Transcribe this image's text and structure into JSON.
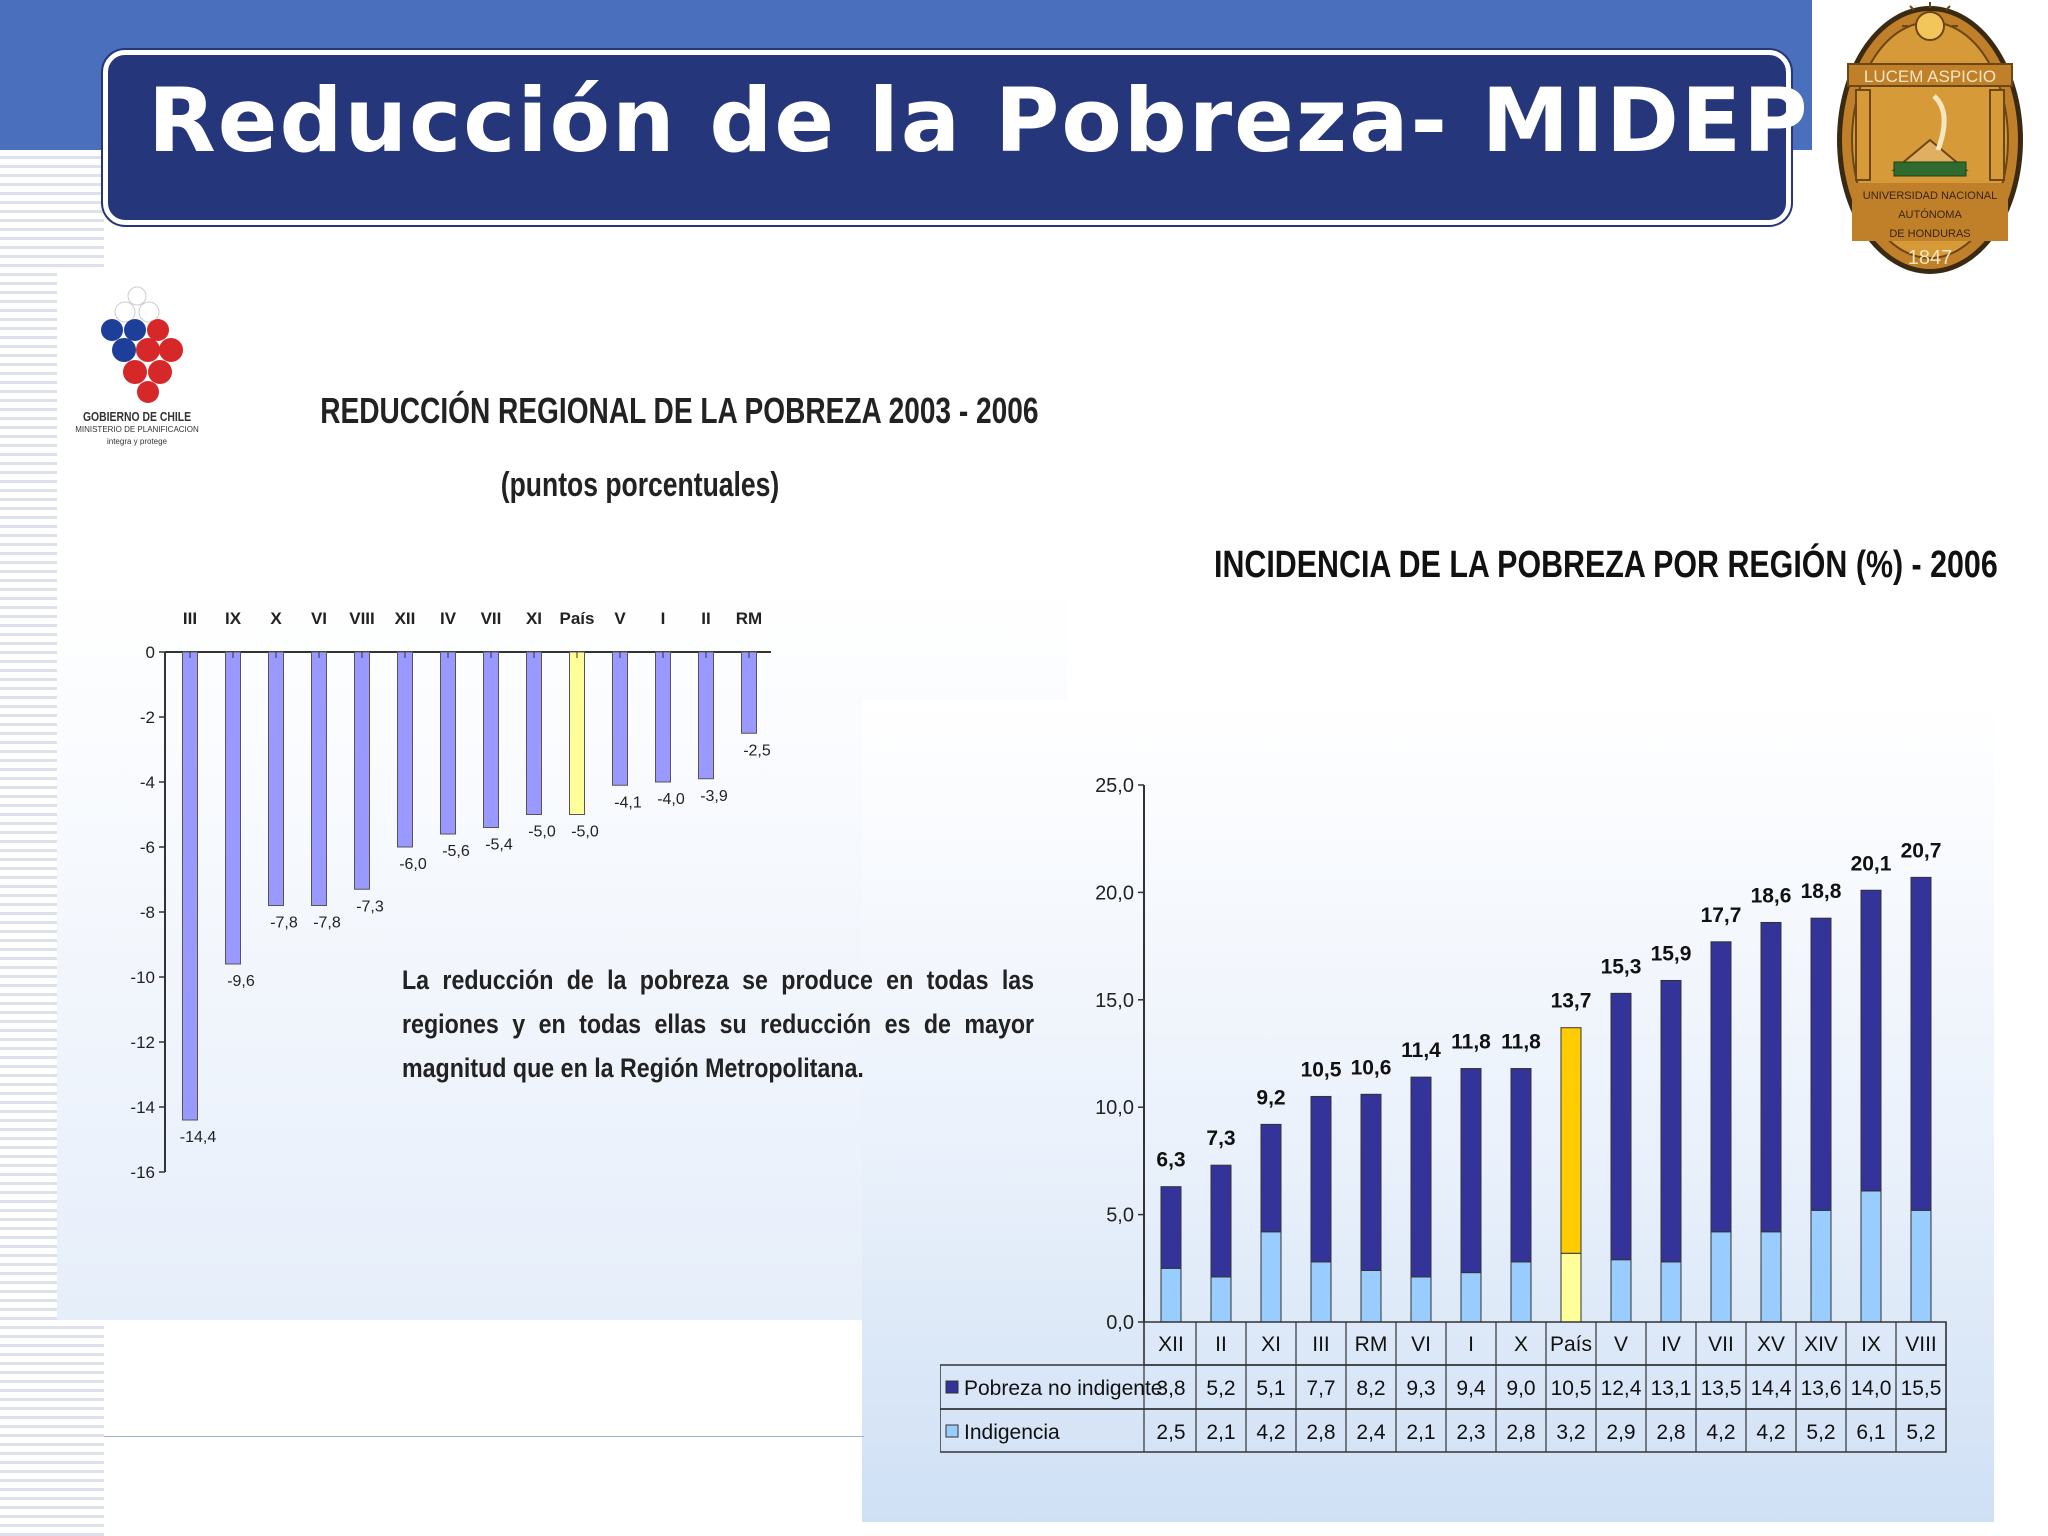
{
  "slide": {
    "title": "Reducción de la Pobreza- MIDEPLAN",
    "accent_color": "#4a6fbd",
    "title_bg_color": "#25367a"
  },
  "seal": {
    "motto": "LUCEM ASPICIO",
    "institution_lines": [
      "UNIVERSIDAD NACIONAL",
      "AUTÓNOMA",
      "DE HONDURAS"
    ],
    "year": "1847"
  },
  "gob_logo": {
    "name": "GOBIERNO DE CHILE",
    "ministry": "MINISTERIO DE PLANIFICACION",
    "tagline": "integra y protege"
  },
  "left_chart_text": {
    "title": "REDUCCIÓN REGIONAL DE LA POBREZA  2003 -  2006",
    "subtitle": "(puntos porcentuales)",
    "note": "La reducción de la pobreza se produce en todas las regiones y en todas ellas su reducción es de mayor magnitud que en la Región Metropolitana."
  },
  "right_chart_text": {
    "title": "INCIDENCIA DE LA POBREZA POR REGIÓN (%) - 2006"
  },
  "chart_data": [
    {
      "type": "bar",
      "title": "REDUCCIÓN REGIONAL DE LA POBREZA  2003 -  2006",
      "subtitle": "(puntos porcentuales)",
      "categories": [
        "III",
        "IX",
        "X",
        "VI",
        "VIII",
        "XII",
        "IV",
        "VII",
        "XI",
        "País",
        "V",
        "I",
        "II",
        "RM"
      ],
      "values": [
        -14.4,
        -9.6,
        -7.8,
        -7.8,
        -7.3,
        -6.0,
        -5.6,
        -5.4,
        -5.0,
        -5.0,
        -4.1,
        -4.0,
        -3.9,
        -2.5
      ],
      "value_labels": [
        "-14,4",
        "-9,6",
        "-7,8",
        "-7,8",
        "-7,3",
        "-6,0",
        "-5,6",
        "-5,4",
        "-5,0",
        "-5,0",
        "-4,1",
        "-4,0",
        "-3,9",
        "-2,5"
      ],
      "highlight_category": "País",
      "colors": {
        "bar": "#9999ff",
        "highlight": "#ffff99"
      },
      "ylim": [
        -16,
        0
      ],
      "yticks": [
        "0",
        "-2",
        "-4",
        "-6",
        "-8",
        "-10",
        "-12",
        "-14",
        "-16"
      ],
      "grid": false,
      "legend": "none"
    },
    {
      "type": "bar",
      "stacked": true,
      "title": "INCIDENCIA DE LA POBREZA POR REGIÓN (%) - 2006",
      "categories": [
        "XII",
        "II",
        "XI",
        "III",
        "RM",
        "VI",
        "I",
        "X",
        "País",
        "V",
        "IV",
        "VII",
        "XV",
        "XIV",
        "IX",
        "VIII"
      ],
      "series": [
        {
          "name": "Indigencia",
          "values": [
            2.5,
            2.1,
            4.2,
            2.8,
            2.4,
            2.1,
            2.3,
            2.8,
            3.2,
            2.9,
            2.8,
            4.2,
            4.2,
            5.2,
            6.1,
            5.2
          ],
          "labels": [
            "2,5",
            "2,1",
            "4,2",
            "2,8",
            "2,4",
            "2,1",
            "2,3",
            "2,8",
            "3,2",
            "2,9",
            "2,8",
            "4,2",
            "4,2",
            "5,2",
            "6,1",
            "5,2"
          ]
        },
        {
          "name": "Pobreza no indigente",
          "values": [
            3.8,
            5.2,
            5.1,
            7.7,
            8.2,
            9.3,
            9.4,
            9.0,
            10.5,
            12.4,
            13.1,
            13.5,
            14.4,
            13.6,
            14.0,
            15.5
          ],
          "labels": [
            "3,8",
            "5,2",
            "5,1",
            "7,7",
            "8,2",
            "9,3",
            "9,4",
            "9,0",
            "10,5",
            "12,4",
            "13,1",
            "13,5",
            "14,4",
            "13,6",
            "14,0",
            "15,5"
          ]
        }
      ],
      "totals": [
        6.3,
        7.3,
        9.2,
        10.5,
        10.6,
        11.4,
        11.8,
        11.8,
        13.7,
        15.3,
        15.9,
        17.7,
        18.6,
        18.8,
        20.1,
        20.7
      ],
      "total_labels": [
        "6,3",
        "7,3",
        "9,2",
        "10,5",
        "10,6",
        "11,4",
        "11,8",
        "11,8",
        "13,7",
        "15,3",
        "15,9",
        "17,7",
        "18,6",
        "18,8",
        "20,1",
        "20,7"
      ],
      "highlight_category": "País",
      "colors": {
        "indigencia": "#99ccff",
        "no_indigente": "#333399",
        "highlight_top": "#ffcc00",
        "highlight_bottom": "#ffff99"
      },
      "ylim": [
        0,
        25
      ],
      "yticks": [
        "0,0",
        "5,0",
        "10,0",
        "15,0",
        "20,0",
        "25,0"
      ],
      "grid": false,
      "legend": "data-table"
    }
  ]
}
